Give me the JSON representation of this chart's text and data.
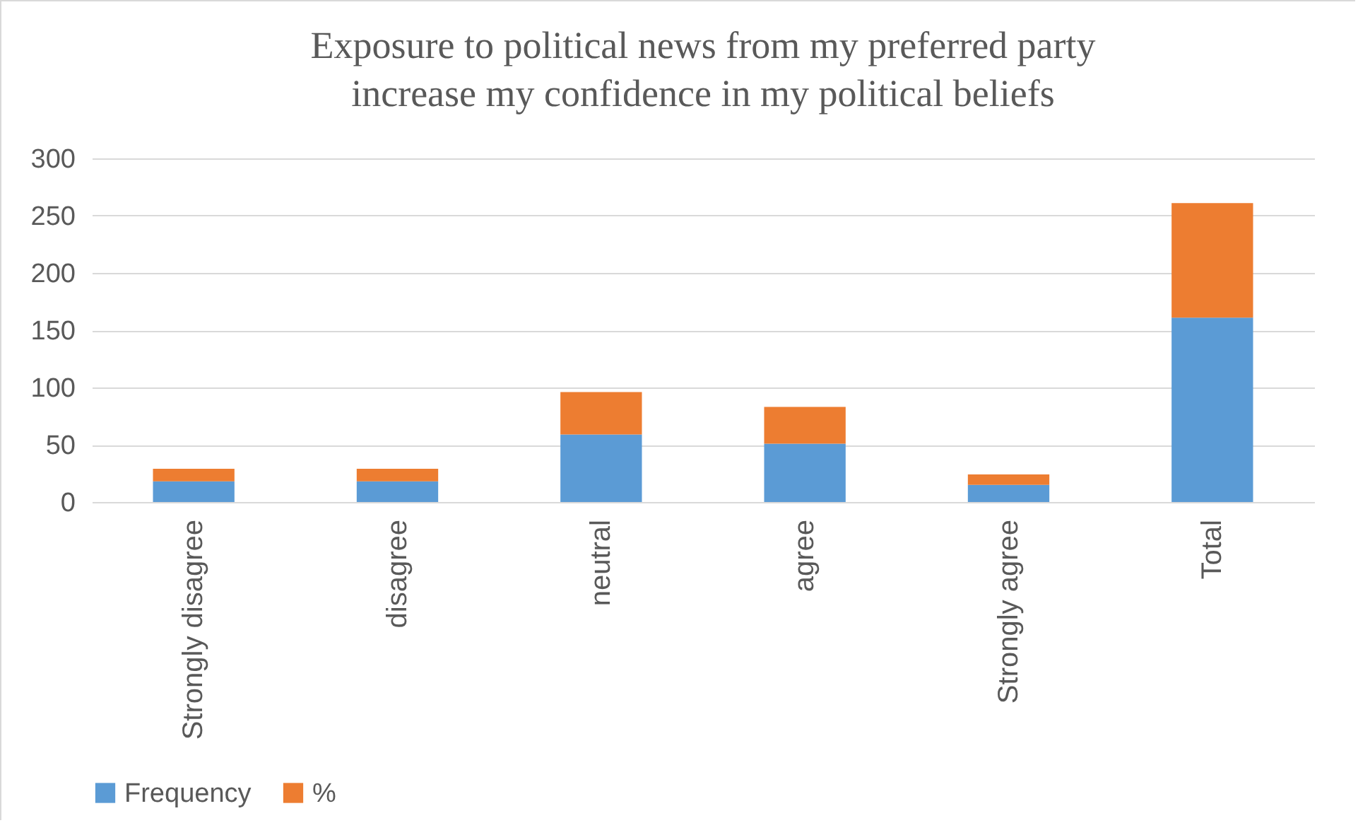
{
  "chart_data": {
    "type": "bar",
    "title": "Exposure to political news from my preferred party\nincrease my confidence in my political beliefs",
    "categories": [
      "Strongly disagree",
      "disagree",
      "neutral",
      "agree",
      "Strongly agree",
      "Total"
    ],
    "series": [
      {
        "name": "Frequency",
        "color": "#5b9bd5",
        "values": [
          18,
          18,
          59,
          51,
          15,
          161
        ]
      },
      {
        "name": "%",
        "color": "#ed7d31",
        "values": [
          11,
          11,
          37,
          32,
          9,
          100
        ]
      }
    ],
    "stacked": true,
    "ylim": [
      0,
      300
    ],
    "yticks": [
      0,
      50,
      100,
      150,
      200,
      250,
      300
    ],
    "grid": "y",
    "legend": "bottom"
  }
}
